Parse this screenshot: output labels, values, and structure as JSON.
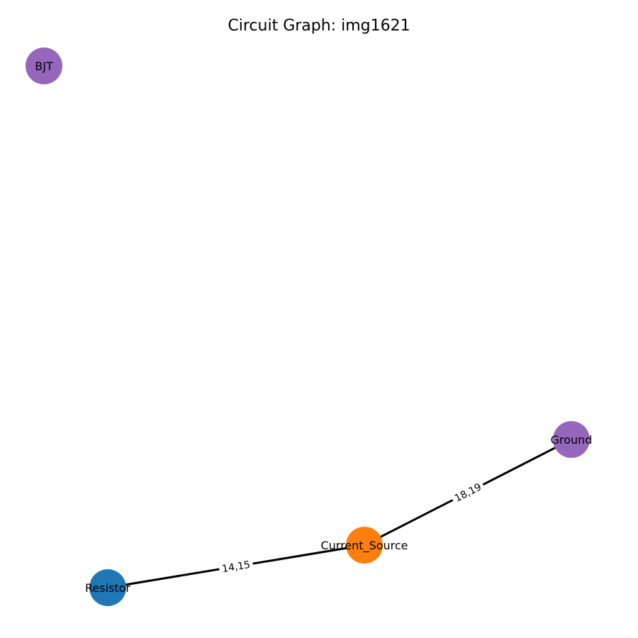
{
  "title": "Circuit Graph: img1621",
  "nodes": [
    {
      "id": "bjt",
      "label": "BJT",
      "color": "#9467bd"
    },
    {
      "id": "ground",
      "label": "Ground",
      "color": "#9467bd"
    },
    {
      "id": "current_source",
      "label": "Current_Source",
      "color": "#ff7f0e"
    },
    {
      "id": "resistor",
      "label": "Resistor",
      "color": "#1f77b4"
    }
  ],
  "edges": [
    {
      "from": "resistor",
      "to": "current_source",
      "label": "14,15"
    },
    {
      "from": "current_source",
      "to": "ground",
      "label": "18,19"
    }
  ],
  "colors": {
    "edge": "#000000",
    "text": "#000000"
  }
}
